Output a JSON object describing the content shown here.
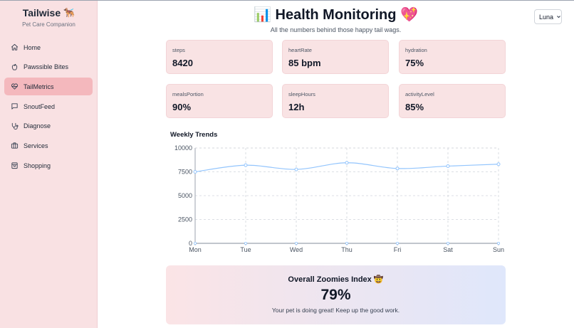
{
  "brand": {
    "title": "Tailwise",
    "emoji": "🐕‍🦺",
    "subtitle": "Pet Care Companion"
  },
  "nav": {
    "items": [
      {
        "label": "Home",
        "icon": "home-icon",
        "active": false
      },
      {
        "label": "Pawssible Bites",
        "icon": "apple-icon",
        "active": false
      },
      {
        "label": "TailMetrics",
        "icon": "heart-pulse-icon",
        "active": true
      },
      {
        "label": "SnoutFeed",
        "icon": "chat-icon",
        "active": false
      },
      {
        "label": "Diagnose",
        "icon": "stethoscope-icon",
        "active": false
      },
      {
        "label": "Services",
        "icon": "briefcase-icon",
        "active": false
      },
      {
        "label": "Shopping",
        "icon": "shopping-bag-icon",
        "active": false
      }
    ]
  },
  "header": {
    "title": "📊 Health Monitoring 💖",
    "subtitle": "All the numbers behind those happy tail wags."
  },
  "pet_select": {
    "value": "Luna"
  },
  "metrics": [
    {
      "label": "steps",
      "value": "8420"
    },
    {
      "label": "heartRate",
      "value": "85 bpm"
    },
    {
      "label": "hydration",
      "value": "75%"
    },
    {
      "label": "mealsPortion",
      "value": "90%"
    },
    {
      "label": "sleepHours",
      "value": "12h"
    },
    {
      "label": "activityLevel",
      "value": "85%"
    }
  ],
  "chart_title": "Weekly Trends",
  "chart_data": {
    "type": "line",
    "title": "Weekly Trends",
    "categories": [
      "Mon",
      "Tue",
      "Wed",
      "Thu",
      "Fri",
      "Sat",
      "Sun"
    ],
    "series": [
      {
        "values": [
          7500,
          8200,
          7750,
          8450,
          7850,
          8100,
          8300
        ]
      }
    ],
    "series_color": "#93c5fd",
    "yticks": [
      0,
      2500,
      5000,
      7500,
      10000
    ],
    "ylim": [
      0,
      10000
    ],
    "grid": true,
    "xlabel": "",
    "ylabel": ""
  },
  "zoomies": {
    "title": "Overall Zoomies Index 🤠",
    "value": "79%",
    "message": "Your pet is doing great! Keep up the good work."
  }
}
